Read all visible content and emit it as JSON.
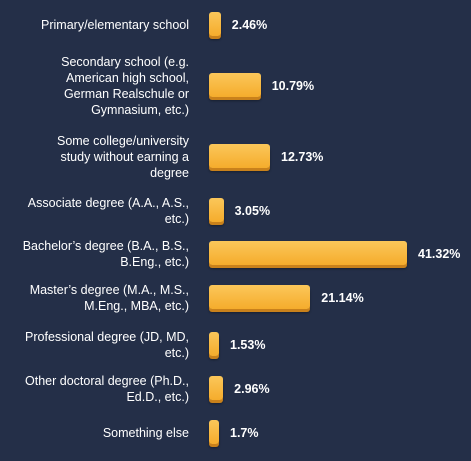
{
  "chart_data": {
    "type": "bar",
    "orientation": "horizontal",
    "categories": [
      "Primary/elementary school",
      "Secondary school (e.g. American high school, German Realschule or Gymnasium, etc.)",
      "Some college/university study without earning a degree",
      "Associate degree (A.A., A.S., etc.)",
      "Bachelor’s degree (B.A., B.S., B.Eng., etc.)",
      "Master’s degree (M.A., M.S., M.Eng., MBA, etc.)",
      "Professional degree (JD, MD, etc.)",
      "Other doctoral degree (Ph.D., Ed.D., etc.)",
      "Something else"
    ],
    "category_lines": [
      [
        "Primary/elementary school"
      ],
      [
        "Secondary school (e.g.",
        "American high school,",
        "German Realschule or",
        "Gymnasium, etc.)"
      ],
      [
        "Some college/university",
        "study without earning a",
        "degree"
      ],
      [
        "Associate degree (A.A., A.S.,",
        "etc.)"
      ],
      [
        "Bachelor’s degree (B.A., B.S.,",
        "B.Eng., etc.)"
      ],
      [
        "Master’s degree (M.A., M.S.,",
        "M.Eng., MBA, etc.)"
      ],
      [
        "Professional degree (JD, MD,",
        "etc.)"
      ],
      [
        "Other doctoral degree (Ph.D.,",
        "Ed.D., etc.)"
      ],
      [
        "Something else"
      ]
    ],
    "values": [
      2.46,
      10.79,
      12.73,
      3.05,
      41.32,
      21.14,
      1.53,
      2.96,
      1.7
    ],
    "value_labels": [
      "2.46%",
      "10.79%",
      "12.73%",
      "3.05%",
      "41.32%",
      "21.14%",
      "1.53%",
      "2.96%",
      "1.7%"
    ],
    "title": "",
    "xlabel": "",
    "ylabel": "",
    "xlim": [
      0,
      41.32
    ],
    "grid": false,
    "legend": "none",
    "colors": {
      "background": "#242f48",
      "bar_top": "#fbc75a",
      "bar_bottom": "#f5ac2c",
      "bar_shadow": "#c9811b",
      "text": "#ffffff"
    }
  }
}
